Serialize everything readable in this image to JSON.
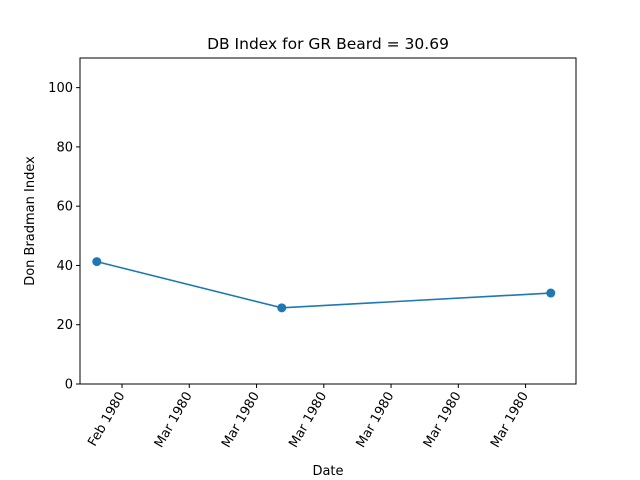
{
  "chart_data": {
    "type": "line",
    "title": "DB Index for GR Beard = 30.69",
    "xlabel": "Date",
    "ylabel": "Don Bradman Index",
    "ylim": [
      0,
      110
    ],
    "y_ticks": [
      0,
      20,
      40,
      60,
      80,
      100
    ],
    "x_ticks": [
      {
        "date": "1980-02-29",
        "label": "Feb 1980"
      },
      {
        "date": "1980-03-01",
        "label": "Mar 1980"
      },
      {
        "date": "1980-03-02",
        "label": "Mar 1980"
      },
      {
        "date": "1980-03-03",
        "label": "Mar 1980"
      },
      {
        "date": "1980-03-04",
        "label": "Mar 1980"
      },
      {
        "date": "1980-03-05",
        "label": "Mar 1980"
      },
      {
        "date": "1980-03-06",
        "label": "Mar 1980"
      }
    ],
    "xlim": [
      "1980-02-28T09:00",
      "1980-03-06T18:00"
    ],
    "grid": false,
    "series": [
      {
        "color": "#1f77b4",
        "marker": "circle",
        "points": [
          {
            "x": "1980-02-28T15:00",
            "y": 41.3
          },
          {
            "x": "1980-03-02T09:00",
            "y": 25.7
          },
          {
            "x": "1980-03-06T09:00",
            "y": 30.69
          }
        ]
      }
    ]
  }
}
